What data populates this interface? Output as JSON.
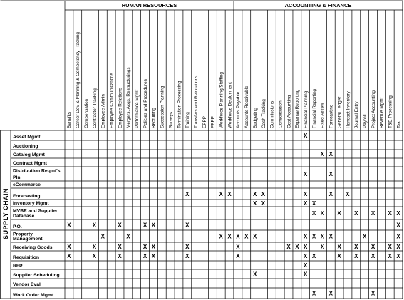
{
  "table": {
    "row_group": "SUPPLY CHAIN",
    "mark": "X",
    "groups": [
      {
        "label": "HUMAN RESOURCES",
        "columns": [
          "Benefits",
          "Career Dev & Planning & Competency Tracking",
          "Compensation",
          "Contractor Tracking",
          "Employee Admin",
          "Employee Communications",
          "Employee Relations",
          "Mergers, Acqs, Restructurings",
          "Performance Mgmt",
          "Policies and Procedures",
          "Recruiting",
          "Succession Planning",
          "Surveys",
          "Termination Processing",
          "Training",
          "Transfers and Relocations",
          "EPPP",
          "EBPP",
          "Workforce Planning/Staffing",
          "Workforce Deployment"
        ]
      },
      {
        "label": "ACCOUNTING & FINANCE",
        "columns": [
          "Accounts Payable",
          "Accounts Receivable",
          "Budgeting",
          "Cash Tracking",
          "Commissions",
          "Consolidation",
          "Cost Accounting",
          "Expense Reporting",
          "Financial Planning",
          "Financial Reporting",
          "Fixed Assets",
          "Forecasting",
          "General Ledger",
          "Handset Inventory",
          "Journal Entry",
          "Payroll",
          "Project Accounting",
          "Revenue Mgmt",
          "T&E Processing",
          "Tax"
        ]
      }
    ],
    "rows": [
      {
        "label": "Asset Mgmt",
        "x_columns": [
          28
        ]
      },
      {
        "label": "Auctioning",
        "x_columns": []
      },
      {
        "label": "Catalog Mgmt",
        "x_columns": [
          30,
          31
        ]
      },
      {
        "label": "Contract Mgmt",
        "x_columns": []
      },
      {
        "label": "Distribution Reqmt's Pln",
        "x_columns": [
          28,
          31
        ]
      },
      {
        "label": "eCommerce",
        "x_columns": []
      },
      {
        "label": "Forecasting",
        "x_columns": [
          14,
          18,
          19,
          22,
          23,
          28,
          31,
          33
        ]
      },
      {
        "label": "Inventory Mgmt",
        "x_columns": [
          22,
          23,
          28,
          29
        ]
      },
      {
        "label": "MVBE and Supplier Database",
        "x_columns": [
          29,
          30,
          32,
          34,
          36,
          38,
          39
        ]
      },
      {
        "label": "P.O.",
        "x_columns": [
          0,
          3,
          6,
          9,
          10,
          14,
          39
        ]
      },
      {
        "label": "Property Management",
        "x_columns": [
          4,
          7,
          18,
          19,
          20,
          21,
          22,
          28,
          29,
          30,
          31,
          35,
          39
        ]
      },
      {
        "label": "Receiving Goods",
        "x_columns": [
          0,
          3,
          6,
          9,
          10,
          14,
          20,
          26,
          27,
          28,
          30,
          32,
          34,
          36,
          38,
          39
        ]
      },
      {
        "label": "Requisition",
        "x_columns": [
          0,
          3,
          6,
          9,
          10,
          14,
          20,
          28,
          29,
          32,
          34,
          36,
          38,
          39
        ]
      },
      {
        "label": "RFP",
        "x_columns": [
          28
        ]
      },
      {
        "label": "Supplier Scheduling",
        "x_columns": [
          22,
          28
        ]
      },
      {
        "label": "Vendor Eval",
        "x_columns": []
      },
      {
        "label": "Work Order Mgmt",
        "x_columns": [
          29,
          31,
          36
        ]
      }
    ]
  }
}
